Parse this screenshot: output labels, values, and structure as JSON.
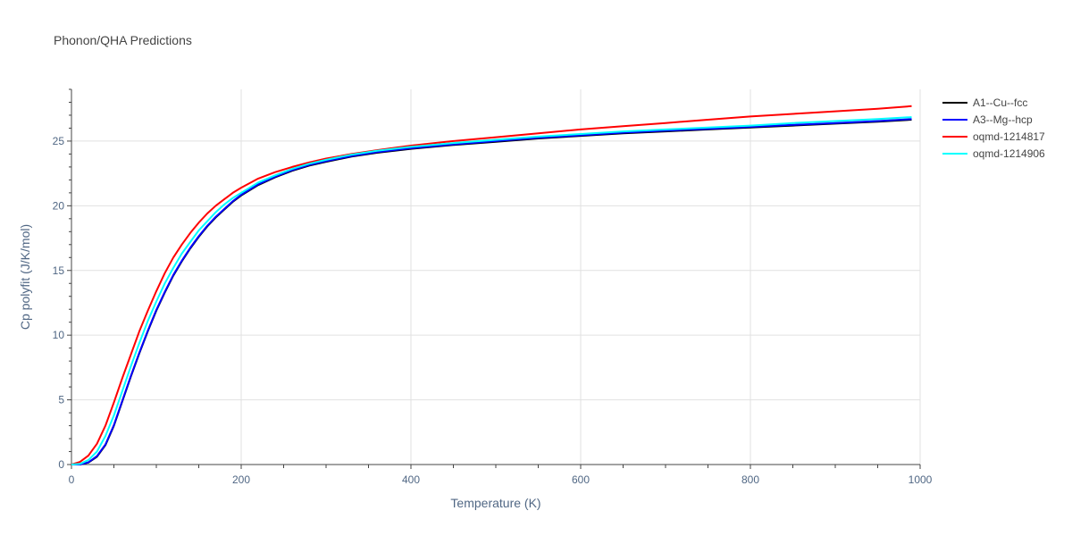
{
  "chart_data": {
    "type": "line",
    "title": "Phonon/QHA Predictions",
    "xlabel": "Temperature (K)",
    "ylabel": "Cp polyfit (J/K/mol)",
    "xlim": [
      0,
      1000
    ],
    "ylim": [
      0,
      29
    ],
    "x_ticks": [
      0,
      200,
      400,
      600,
      800,
      1000
    ],
    "y_ticks": [
      0,
      5,
      10,
      15,
      20,
      25
    ],
    "grid": true,
    "legend_position": "right",
    "series": [
      {
        "name": "A1--Cu--fcc",
        "color": "#000000",
        "x": [
          0,
          10,
          20,
          30,
          40,
          50,
          60,
          70,
          80,
          90,
          100,
          110,
          120,
          130,
          140,
          150,
          160,
          170,
          180,
          190,
          200,
          220,
          240,
          260,
          280,
          300,
          330,
          360,
          400,
          450,
          500,
          550,
          600,
          650,
          700,
          750,
          800,
          850,
          900,
          950,
          990
        ],
        "y": [
          0,
          0.0,
          0.15,
          0.6,
          1.5,
          3.0,
          4.9,
          6.8,
          8.6,
          10.3,
          11.9,
          13.3,
          14.6,
          15.7,
          16.7,
          17.6,
          18.4,
          19.1,
          19.7,
          20.3,
          20.8,
          21.6,
          22.2,
          22.7,
          23.1,
          23.4,
          23.8,
          24.1,
          24.4,
          24.7,
          24.95,
          25.2,
          25.4,
          25.6,
          25.75,
          25.9,
          26.05,
          26.2,
          26.35,
          26.5,
          26.65
        ]
      },
      {
        "name": "A3--Mg--hcp",
        "color": "#0000ff",
        "x": [
          0,
          10,
          20,
          30,
          40,
          50,
          60,
          70,
          80,
          90,
          100,
          110,
          120,
          130,
          140,
          150,
          160,
          170,
          180,
          190,
          200,
          220,
          240,
          260,
          280,
          300,
          330,
          360,
          400,
          450,
          500,
          550,
          600,
          650,
          700,
          750,
          800,
          850,
          900,
          950,
          990
        ],
        "y": [
          0,
          0.0,
          0.17,
          0.65,
          1.55,
          3.05,
          4.95,
          6.85,
          8.65,
          10.35,
          11.95,
          13.35,
          14.65,
          15.75,
          16.75,
          17.65,
          18.45,
          19.15,
          19.75,
          20.35,
          20.85,
          21.65,
          22.25,
          22.75,
          23.15,
          23.45,
          23.85,
          24.15,
          24.45,
          24.75,
          25.0,
          25.25,
          25.45,
          25.65,
          25.8,
          25.95,
          26.1,
          26.25,
          26.4,
          26.55,
          26.7
        ]
      },
      {
        "name": "oqmd-1214817",
        "color": "#ff0000",
        "x": [
          0,
          10,
          20,
          30,
          40,
          50,
          60,
          70,
          80,
          90,
          100,
          110,
          120,
          130,
          140,
          150,
          160,
          170,
          180,
          190,
          200,
          220,
          240,
          260,
          280,
          300,
          330,
          360,
          400,
          450,
          500,
          550,
          600,
          650,
          700,
          750,
          800,
          850,
          900,
          950,
          990
        ],
        "y": [
          0,
          0.2,
          0.7,
          1.6,
          3.0,
          4.8,
          6.7,
          8.5,
          10.3,
          11.9,
          13.4,
          14.8,
          16.0,
          17.0,
          17.9,
          18.7,
          19.4,
          20.0,
          20.5,
          21.0,
          21.4,
          22.1,
          22.6,
          23.0,
          23.35,
          23.65,
          24.0,
          24.3,
          24.65,
          25.0,
          25.3,
          25.6,
          25.9,
          26.15,
          26.4,
          26.65,
          26.9,
          27.1,
          27.3,
          27.5,
          27.7
        ]
      },
      {
        "name": "oqmd-1214906",
        "color": "#00ffff",
        "x": [
          0,
          10,
          20,
          30,
          40,
          50,
          60,
          70,
          80,
          90,
          100,
          110,
          120,
          130,
          140,
          150,
          160,
          170,
          180,
          190,
          200,
          220,
          240,
          260,
          280,
          300,
          330,
          360,
          400,
          450,
          500,
          550,
          600,
          650,
          700,
          750,
          800,
          850,
          900,
          950,
          990
        ],
        "y": [
          0,
          0.05,
          0.35,
          1.0,
          2.2,
          3.8,
          5.7,
          7.6,
          9.4,
          11.1,
          12.6,
          14.0,
          15.2,
          16.3,
          17.2,
          18.1,
          18.8,
          19.5,
          20.1,
          20.6,
          21.0,
          21.8,
          22.35,
          22.85,
          23.25,
          23.55,
          23.95,
          24.25,
          24.55,
          24.85,
          25.1,
          25.35,
          25.55,
          25.75,
          25.9,
          26.05,
          26.2,
          26.4,
          26.55,
          26.7,
          26.85
        ]
      }
    ]
  }
}
